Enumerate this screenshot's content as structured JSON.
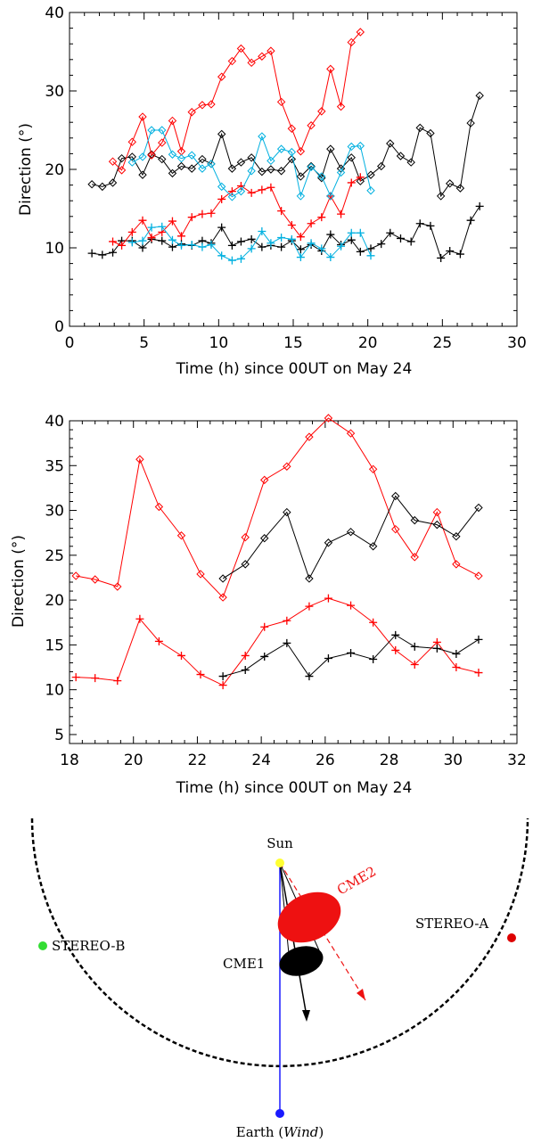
{
  "chart_data": [
    {
      "type": "line",
      "xlabel": "Time (h) since 00UT on May 24",
      "ylabel": "Direction (°)",
      "xlim": [
        0,
        30
      ],
      "ylim": [
        0,
        40
      ],
      "xticks": [
        "0",
        "5",
        "10",
        "15",
        "20",
        "25",
        "30"
      ],
      "yticks": [
        "0",
        "10",
        "20",
        "30",
        "40"
      ],
      "series": [
        {
          "color": "#000000",
          "marker": "diamond",
          "x": [
            1.5,
            2.2,
            2.9,
            3.5,
            4.2,
            4.9,
            5.5,
            6.2,
            6.9,
            7.5,
            8.2,
            8.9,
            9.5,
            10.2,
            10.9,
            11.5,
            12.2,
            12.9,
            13.5,
            14.2,
            14.9,
            15.5,
            16.2,
            16.9,
            17.5,
            18.2,
            18.9,
            19.5,
            20.2,
            20.9,
            21.5,
            22.2,
            22.9,
            23.5,
            24.2,
            24.9,
            25.5,
            26.2,
            26.9,
            27.5
          ],
          "y": [
            18.1,
            17.8,
            18.3,
            21.4,
            21.6,
            19.3,
            21.9,
            21.3,
            19.5,
            20.4,
            20.1,
            21.3,
            20.7,
            24.5,
            20.1,
            20.9,
            21.5,
            19.7,
            20.0,
            19.8,
            21.3,
            19.1,
            20.4,
            18.9,
            22.6,
            20.1,
            21.5,
            18.5,
            19.3,
            20.4,
            23.3,
            21.7,
            20.9,
            25.3,
            24.6,
            16.6,
            18.2,
            17.6,
            25.9,
            29.4
          ]
        },
        {
          "color": "#000000",
          "marker": "plus",
          "x": [
            1.5,
            2.2,
            2.9,
            3.5,
            4.2,
            4.9,
            5.5,
            6.2,
            6.9,
            7.5,
            8.2,
            8.9,
            9.5,
            10.2,
            10.9,
            11.5,
            12.2,
            12.9,
            13.5,
            14.2,
            14.9,
            15.5,
            16.2,
            16.9,
            17.5,
            18.2,
            18.9,
            19.5,
            20.2,
            20.9,
            21.5,
            22.2,
            22.9,
            23.5,
            24.2,
            24.9,
            25.5,
            26.2,
            26.9,
            27.5
          ],
          "y": [
            9.3,
            9.1,
            9.4,
            10.9,
            10.9,
            10.0,
            11.1,
            10.9,
            10.1,
            10.5,
            10.3,
            10.9,
            10.6,
            12.6,
            10.3,
            10.8,
            11.1,
            10.1,
            10.3,
            10.1,
            10.9,
            9.8,
            10.4,
            9.6,
            11.7,
            10.4,
            11.0,
            9.5,
            9.9,
            10.5,
            11.9,
            11.2,
            10.8,
            13.1,
            12.8,
            8.7,
            9.6,
            9.2,
            13.5,
            15.3
          ]
        },
        {
          "color": "#ff0000",
          "marker": "diamond",
          "x": [
            2.9,
            3.5,
            4.2,
            4.9,
            5.5,
            6.2,
            6.9,
            7.5,
            8.2,
            8.9,
            9.5,
            10.2,
            10.9,
            11.5,
            12.2,
            12.9,
            13.5,
            14.2,
            14.9,
            15.5,
            16.2,
            16.9,
            17.5,
            18.2,
            18.9,
            19.5
          ],
          "y": [
            21.0,
            19.9,
            23.5,
            26.7,
            21.8,
            23.4,
            26.2,
            22.3,
            27.3,
            28.2,
            28.3,
            31.8,
            33.8,
            35.4,
            33.6,
            34.4,
            35.1,
            28.6,
            25.2,
            22.3,
            25.6,
            27.4,
            32.8,
            28.0,
            36.2,
            37.5
          ]
        },
        {
          "color": "#ff0000",
          "marker": "plus",
          "x": [
            2.9,
            3.5,
            4.2,
            4.9,
            5.5,
            6.2,
            6.9,
            7.5,
            8.2,
            8.9,
            9.5,
            10.2,
            10.9,
            11.5,
            12.2,
            12.9,
            13.5,
            14.2,
            14.9,
            15.5,
            16.2,
            16.9,
            17.5,
            18.2,
            18.9,
            19.5
          ],
          "y": [
            10.8,
            10.3,
            12.0,
            13.5,
            11.3,
            12.0,
            13.4,
            11.5,
            13.9,
            14.3,
            14.4,
            16.2,
            17.2,
            17.9,
            17.0,
            17.4,
            17.7,
            14.7,
            12.9,
            11.4,
            13.1,
            13.9,
            16.6,
            14.3,
            18.3,
            19.0
          ]
        },
        {
          "color": "#00b0e0",
          "marker": "diamond",
          "x": [
            4.2,
            4.9,
            5.5,
            6.2,
            6.9,
            7.5,
            8.2,
            8.9,
            9.5,
            10.2,
            10.9,
            11.5,
            12.2,
            12.9,
            13.5,
            14.2,
            14.9,
            15.5,
            16.2,
            16.9,
            17.5,
            18.2,
            18.9,
            19.5,
            20.2
          ],
          "y": [
            20.9,
            21.6,
            25.0,
            25.0,
            21.9,
            21.4,
            21.8,
            20.1,
            20.7,
            17.8,
            16.5,
            17.2,
            19.8,
            24.2,
            21.1,
            22.6,
            22.2,
            16.6,
            20.3,
            19.1,
            16.6,
            19.6,
            22.9,
            23.0,
            17.3
          ]
        },
        {
          "color": "#00b0e0",
          "marker": "plus",
          "x": [
            4.2,
            4.9,
            5.5,
            6.2,
            6.9,
            7.5,
            8.2,
            8.9,
            9.5,
            10.2,
            10.9,
            11.5,
            12.2,
            12.9,
            13.5,
            14.2,
            14.9,
            15.5,
            16.2,
            16.9,
            17.5,
            18.2,
            18.9,
            19.5,
            20.2
          ],
          "y": [
            10.7,
            10.9,
            12.6,
            12.7,
            11.0,
            10.3,
            10.4,
            10.1,
            10.4,
            9.0,
            8.4,
            8.6,
            9.9,
            12.1,
            10.6,
            11.3,
            11.1,
            8.8,
            10.6,
            9.9,
            8.8,
            10.2,
            11.9,
            11.9,
            9.0
          ]
        }
      ]
    },
    {
      "type": "line",
      "xlabel": "Time (h) since 00UT on May 24",
      "ylabel": "Direction (°)",
      "xlim": [
        18,
        32
      ],
      "ylim": [
        4,
        40
      ],
      "xticks": [
        "18",
        "20",
        "22",
        "24",
        "26",
        "28",
        "30",
        "32"
      ],
      "yticks": [
        "5",
        "10",
        "15",
        "20",
        "25",
        "30",
        "35",
        "40"
      ],
      "series": [
        {
          "color": "#ff0000",
          "marker": "diamond",
          "x": [
            18.2,
            18.8,
            19.5,
            20.2,
            20.8,
            21.5,
            22.1,
            22.8,
            23.5,
            24.1,
            24.8,
            25.5,
            26.1,
            26.8,
            27.5,
            28.2,
            28.8,
            29.5,
            30.1,
            30.8
          ],
          "y": [
            22.7,
            22.3,
            21.5,
            35.7,
            30.4,
            27.2,
            22.9,
            20.3,
            27.0,
            33.4,
            34.9,
            38.2,
            40.3,
            38.6,
            34.6,
            27.9,
            24.8,
            29.8,
            24.0,
            22.7
          ]
        },
        {
          "color": "#ff0000",
          "marker": "plus",
          "x": [
            18.2,
            18.8,
            19.5,
            20.2,
            20.8,
            21.5,
            22.1,
            22.8,
            23.5,
            24.1,
            24.8,
            25.5,
            26.1,
            26.8,
            27.5,
            28.2,
            28.8,
            29.5,
            30.1,
            30.8
          ],
          "y": [
            11.4,
            11.3,
            11.0,
            17.9,
            15.4,
            13.8,
            11.7,
            10.5,
            13.8,
            17.0,
            17.7,
            19.3,
            20.2,
            19.4,
            17.5,
            14.4,
            12.8,
            15.3,
            12.5,
            11.9
          ]
        },
        {
          "color": "#000000",
          "marker": "diamond",
          "x": [
            22.8,
            23.5,
            24.1,
            24.8,
            25.5,
            26.1,
            26.8,
            27.5,
            28.2,
            28.8,
            29.5,
            30.1,
            30.8
          ],
          "y": [
            22.4,
            24.0,
            26.9,
            29.8,
            22.4,
            26.4,
            27.6,
            26.0,
            31.6,
            28.9,
            28.4,
            27.1,
            30.3
          ]
        },
        {
          "color": "#000000",
          "marker": "plus",
          "x": [
            22.8,
            23.5,
            24.1,
            24.8,
            25.5,
            26.1,
            26.8,
            27.5,
            28.2,
            28.8,
            29.5,
            30.1,
            30.8
          ],
          "y": [
            11.5,
            12.2,
            13.7,
            15.2,
            11.5,
            13.5,
            14.1,
            13.4,
            16.1,
            14.8,
            14.6,
            14.0,
            15.6
          ]
        }
      ]
    }
  ],
  "diagram": {
    "sun": "Sun",
    "cme1": "CME1",
    "cme2": "CME2",
    "stereo_a": "STEREO-A",
    "stereo_b": "STEREO-B",
    "earth": "Earth (",
    "earth_italic": "Wind",
    "earth_close": ")",
    "colors": {
      "sun": "#ffff33",
      "stereo_a": "#dd0000",
      "stereo_b": "#33dd33",
      "earth": "#1a1aff",
      "cme2": "#ee1111",
      "cme1": "#000000"
    }
  }
}
